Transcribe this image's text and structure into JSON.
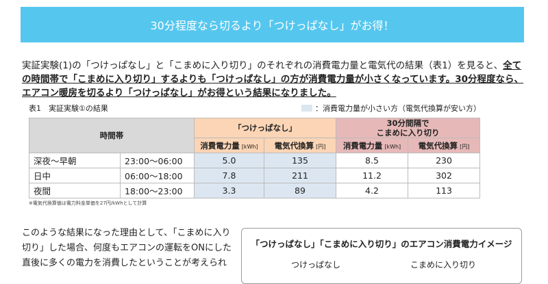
{
  "header": {
    "title": "30分程度なら切るより「つけっぱなし」がお得！"
  },
  "intro": {
    "text": "実証実験(1)の「つけっぱなし」と「こまめに入り切り」のそれぞれの消費電力量と電気代の結果（表1）を見ると、",
    "emphasis": "全ての時間帯で「こまめに入り切り」するよりも「つけっぱなし」の方が消費電力量が小さくなっています。30分程度なら、エアコン暖房を切るより「つけっぱなし」がお得という結果になりました。"
  },
  "table": {
    "caption": "表1　実証実験①の結果",
    "legend": "：消費電力量が小さい方（電気代換算が安い方）",
    "period_header": "時間帯",
    "groups": [
      "「つけっぱなし」",
      "30分間隔で\nこまめに入り切り"
    ],
    "subheaders": [
      {
        "name": "消費電力量",
        "unit": "[kWh]"
      },
      {
        "name": "電気代換算",
        "unit": "[円]"
      },
      {
        "name": "消費電力量",
        "unit": "[kWh]"
      },
      {
        "name": "電気代換算",
        "unit": "[円]"
      }
    ],
    "rows": [
      [
        "深夜～早朝",
        "23:00～06:00",
        "5.0",
        "135",
        "8.5",
        "230"
      ],
      [
        "日中",
        "06:00～18:00",
        "7.8",
        "211",
        "11.2",
        "302"
      ],
      [
        "夜間",
        "18:00～23:00",
        "3.3",
        "89",
        "4.2",
        "113"
      ]
    ],
    "note": "※電気代換算値は電力料金単価を27円/kWhとして計算"
  },
  "body": {
    "text": "このような結果になった理由として、「こまめに入り切り」した場合、何度もエアコンの運転をONにした直後に多くの電力を消費したということが考えられ"
  },
  "figure": {
    "title": "「つけっぱなし」「こまめに入り切り」のエアコン消費電力イメージ",
    "labels": [
      "つけっぱなし",
      "こまめに入り切り"
    ]
  }
}
